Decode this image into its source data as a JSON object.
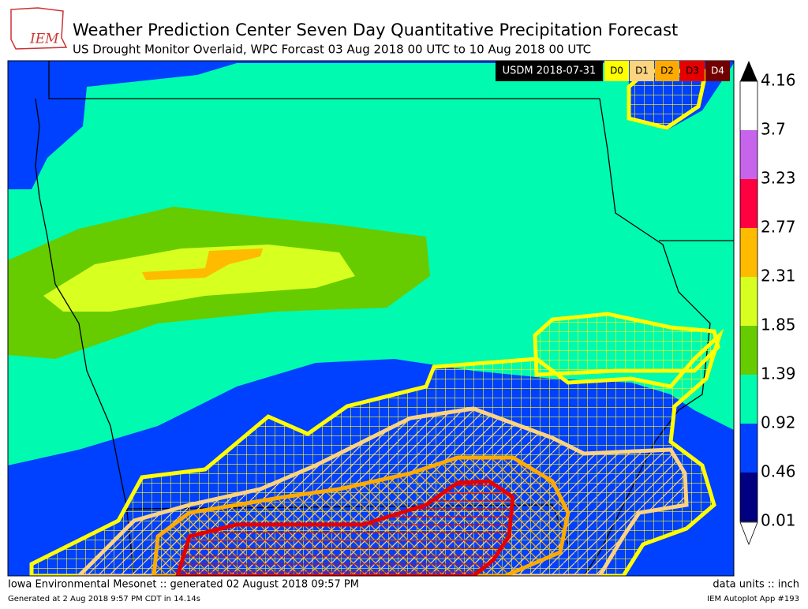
{
  "header": {
    "logo": "IEM",
    "title": "Weather Prediction Center Seven Day Quantitative Precipitation Forecast",
    "subtitle": "US Drought Monitor Overlaid, WPC Forcast 03 Aug 2018 00 UTC to 10 Aug 2018 00 UTC"
  },
  "drought_legend": {
    "label": "USDM 2018-07-31",
    "categories": [
      {
        "name": "D0",
        "color": "#ffff00"
      },
      {
        "name": "D1",
        "color": "#fcd37f"
      },
      {
        "name": "D2",
        "color": "#ffaa00"
      },
      {
        "name": "D3",
        "color": "#e60000"
      },
      {
        "name": "D4",
        "color": "#730000"
      }
    ]
  },
  "colorbar": {
    "ticks": [
      "4.16",
      "3.7",
      "3.23",
      "2.77",
      "2.31",
      "1.85",
      "1.39",
      "0.92",
      "0.46",
      "0.01"
    ],
    "colors": [
      "#ffffff",
      "#c764ec",
      "#ff0040",
      "#ffbb00",
      "#d7ff20",
      "#66cc00",
      "#00fab0",
      "#0040ff",
      "#000080"
    ]
  },
  "footer": {
    "left": "Iowa Environmental Mesonet :: generated 02 August 2018 09:57 PM",
    "right": "data units :: inch",
    "left_small": "Generated at 2 Aug 2018 9:57 PM CDT in 14.14s",
    "right_small": "IEM Autoplot App #193"
  }
}
